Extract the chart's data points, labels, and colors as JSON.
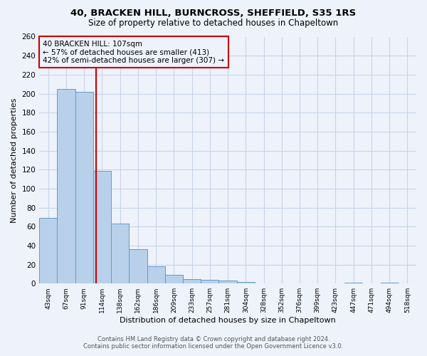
{
  "title": "40, BRACKEN HILL, BURNCROSS, SHEFFIELD, S35 1RS",
  "subtitle": "Size of property relative to detached houses in Chapeltown",
  "xlabel": "Distribution of detached houses by size in Chapeltown",
  "ylabel": "Number of detached properties",
  "footer_line1": "Contains HM Land Registry data © Crown copyright and database right 2024.",
  "footer_line2": "Contains public sector information licensed under the Open Government Licence v3.0.",
  "categories": [
    "43sqm",
    "67sqm",
    "91sqm",
    "114sqm",
    "138sqm",
    "162sqm",
    "186sqm",
    "209sqm",
    "233sqm",
    "257sqm",
    "281sqm",
    "304sqm",
    "328sqm",
    "352sqm",
    "376sqm",
    "399sqm",
    "423sqm",
    "447sqm",
    "471sqm",
    "494sqm",
    "518sqm"
  ],
  "values": [
    69,
    205,
    202,
    119,
    63,
    36,
    18,
    9,
    5,
    4,
    3,
    2,
    0,
    0,
    0,
    0,
    0,
    1,
    0,
    1,
    0
  ],
  "bar_color": "#b8d0ea",
  "bar_edge_color": "#6699cc",
  "grid_color": "#c8d4e8",
  "background_color": "#eef2fb",
  "vline_color": "#cc0000",
  "vline_x": 2.67,
  "annotation_text": "40 BRACKEN HILL: 107sqm\n← 57% of detached houses are smaller (413)\n42% of semi-detached houses are larger (307) →",
  "annotation_box_color": "#cc0000",
  "ylim": [
    0,
    260
  ],
  "yticks": [
    0,
    20,
    40,
    60,
    80,
    100,
    120,
    140,
    160,
    180,
    200,
    220,
    240,
    260
  ]
}
